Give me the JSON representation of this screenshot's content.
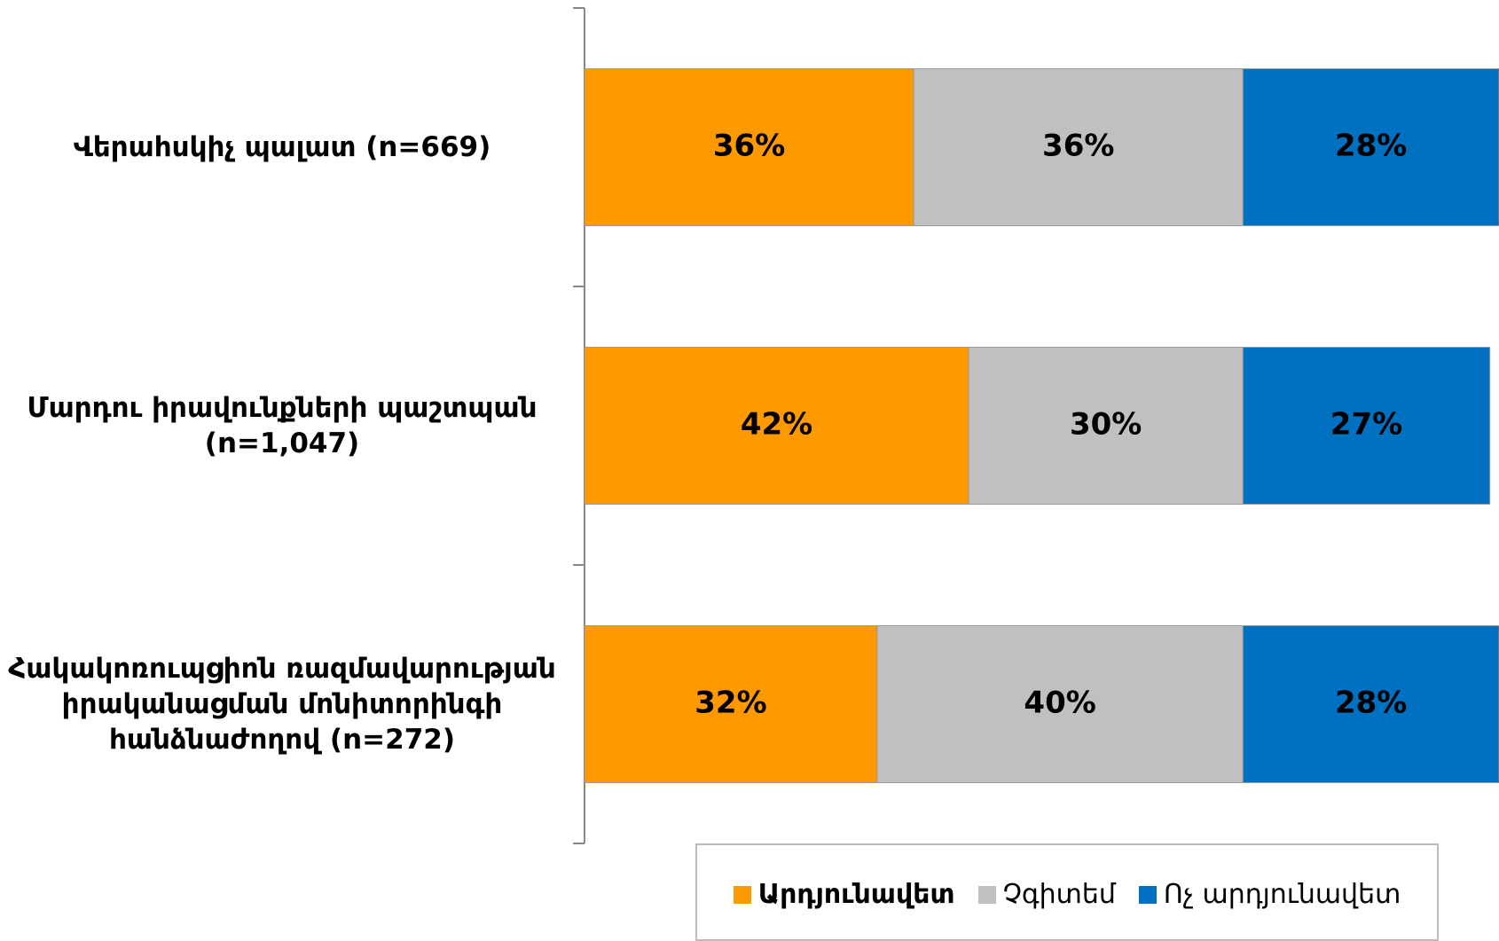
{
  "chart_data": {
    "type": "stacked-bar-horizontal",
    "categories": [
      "Վերահսկիչ պալատ (n=669)",
      "Մարդու իրավունքների պաշտպան (n=1,047)",
      "Հակակոռուպցիոն ռազմավարության իրականացման մոնիտորինգի հանձնաժողով (n=272)"
    ],
    "series": [
      {
        "name": "Արդյունավետ",
        "color": "#FF9900",
        "values": [
          36,
          42,
          32
        ],
        "value_labels": [
          "36%",
          "42%",
          "32%"
        ]
      },
      {
        "name": "Չգիտեմ",
        "color": "#C0C0C0",
        "values": [
          36,
          30,
          40
        ],
        "value_labels": [
          "36%",
          "30%",
          "40%"
        ]
      },
      {
        "name": "Ոչ արդյունավետ",
        "color": "#0070C0",
        "values": [
          28,
          27,
          28
        ],
        "value_labels": [
          "28%",
          "27%",
          "28%"
        ]
      }
    ],
    "xlim": [
      0,
      100
    ],
    "legend": "bottom"
  }
}
